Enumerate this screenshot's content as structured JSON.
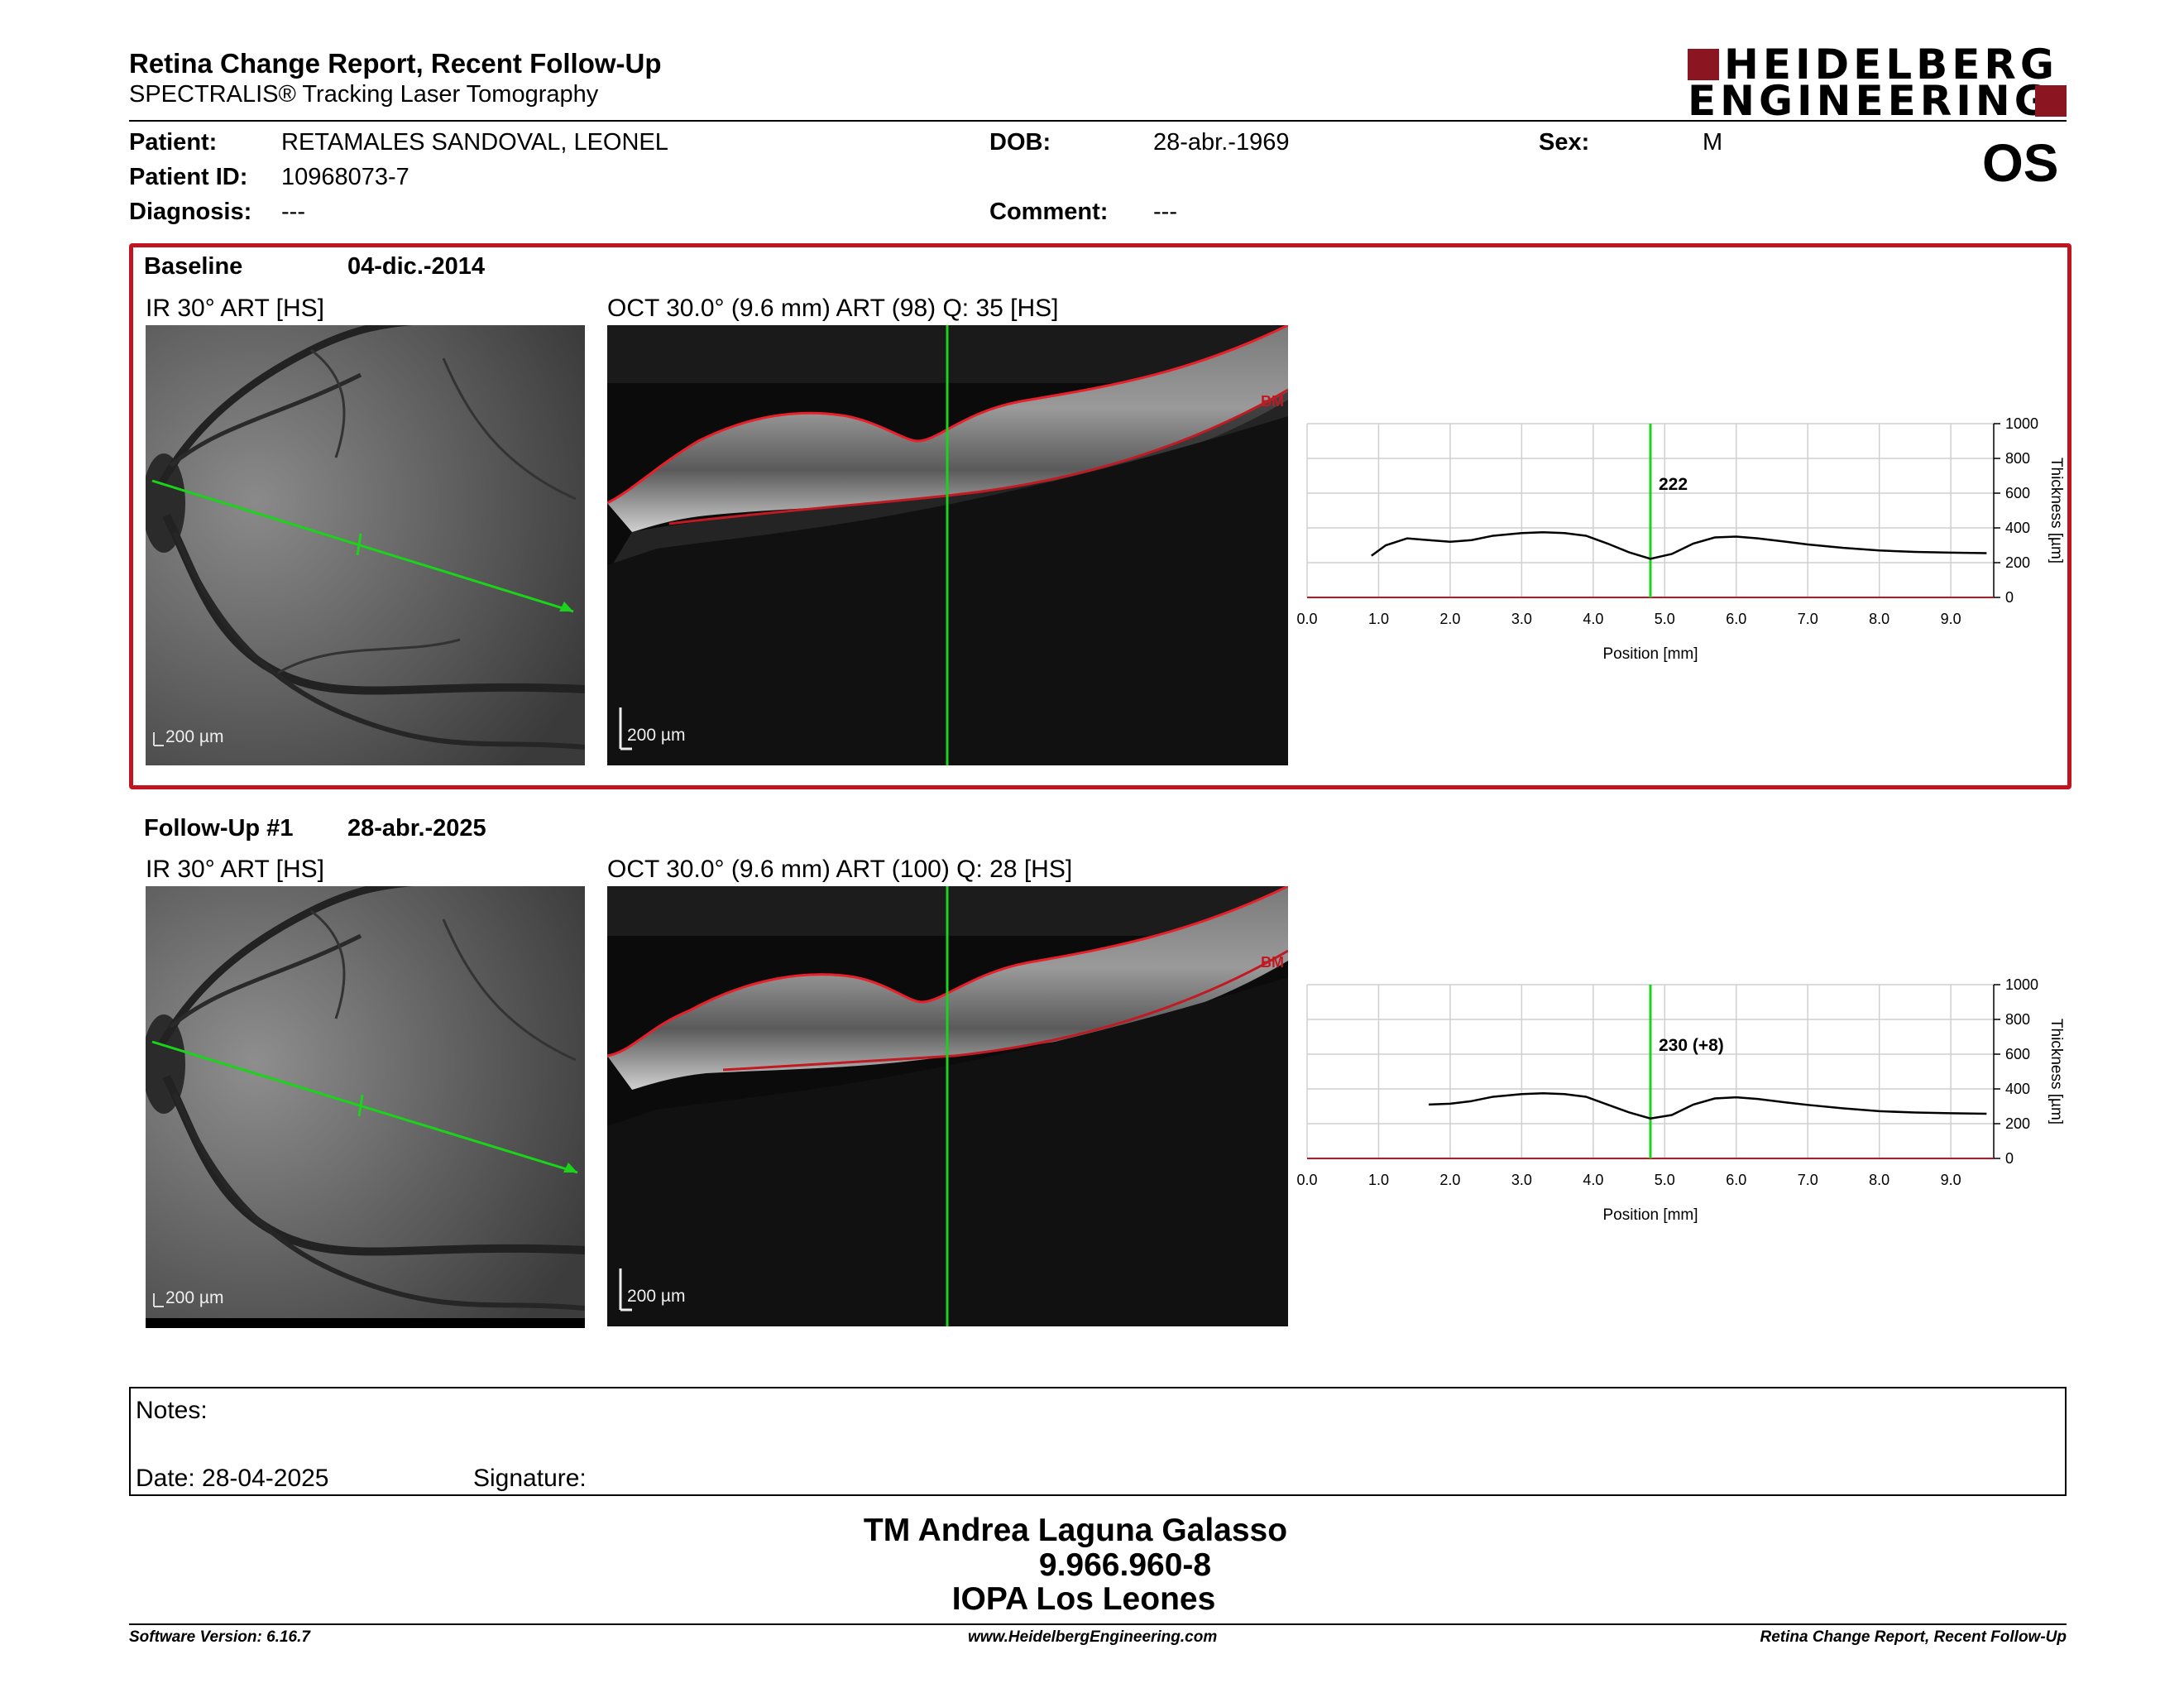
{
  "header": {
    "title": "Retina Change Report, Recent Follow-Up",
    "subtitle": "SPECTRALIS® Tracking Laser Tomography",
    "logo_line1": "HEIDELBERG",
    "logo_line2": "ENGINEERING",
    "brand_color": "#8b1521"
  },
  "patient": {
    "patient_label": "Patient:",
    "patient_value": "RETAMALES SANDOVAL, LEONEL",
    "id_label": "Patient ID:",
    "id_value": "10968073-7",
    "diagnosis_label": "Diagnosis:",
    "diagnosis_value": "---",
    "dob_label": "DOB:",
    "dob_value": "28-abr.-1969",
    "comment_label": "Comment:",
    "comment_value": "---",
    "sex_label": "Sex:",
    "sex_value": "M",
    "eye": "OS"
  },
  "baseline": {
    "label": "Baseline",
    "date": "04-dic.-2014",
    "ir_caption": "IR 30° ART [HS]",
    "oct_caption": "OCT 30.0° (9.6 mm) ART (98) Q: 35 [HS]",
    "ir_scale": "200 µm",
    "oct_scale": "200 µm",
    "bm_label": "BM",
    "highlight_color": "#c0141e"
  },
  "followup": {
    "label": "Follow-Up #1",
    "date": "28-abr.-2025",
    "ir_caption": "IR 30° ART [HS]",
    "oct_caption": "OCT 30.0° (9.6 mm) ART (100) Q: 28 [HS]",
    "ir_scale": "200 µm",
    "oct_scale": "200 µm",
    "bm_label": "BM"
  },
  "chart_data": [
    {
      "type": "line",
      "xlabel": "Position [mm]",
      "ylabel": "Thickness [µm]",
      "xlim": [
        0,
        9.6
      ],
      "ylim": [
        0,
        1000
      ],
      "xticks": [
        "0.0",
        "1.0",
        "2.0",
        "3.0",
        "4.0",
        "5.0",
        "6.0",
        "7.0",
        "8.0",
        "9.0"
      ],
      "yticks": [
        "0",
        "200",
        "400",
        "600",
        "800",
        "1000"
      ],
      "grid": true,
      "marker_x": 4.8,
      "marker_label": "222",
      "series": [
        {
          "x": [
            0.9,
            1.1,
            1.4,
            1.7,
            2.0,
            2.3,
            2.6,
            3.0,
            3.3,
            3.6,
            3.9,
            4.2,
            4.5,
            4.8,
            5.1,
            5.4,
            5.7,
            6.0,
            6.3,
            6.7,
            7.0,
            7.5,
            8.0,
            8.5,
            9.0,
            9.5
          ],
          "values": [
            240,
            300,
            340,
            330,
            320,
            330,
            355,
            370,
            375,
            370,
            355,
            310,
            260,
            222,
            250,
            310,
            345,
            350,
            340,
            320,
            305,
            285,
            270,
            262,
            258,
            255
          ]
        }
      ]
    },
    {
      "type": "line",
      "xlabel": "Position [mm]",
      "ylabel": "Thickness [µm]",
      "xlim": [
        0,
        9.6
      ],
      "ylim": [
        0,
        1000
      ],
      "xticks": [
        "0.0",
        "1.0",
        "2.0",
        "3.0",
        "4.0",
        "5.0",
        "6.0",
        "7.0",
        "8.0",
        "9.0"
      ],
      "yticks": [
        "0",
        "200",
        "400",
        "600",
        "800",
        "1000"
      ],
      "grid": true,
      "marker_x": 4.8,
      "marker_label": "230 (+8)",
      "series": [
        {
          "x": [
            1.7,
            2.0,
            2.3,
            2.6,
            3.0,
            3.3,
            3.6,
            3.9,
            4.2,
            4.5,
            4.8,
            5.1,
            5.4,
            5.7,
            6.0,
            6.3,
            6.7,
            7.0,
            7.5,
            8.0,
            8.5,
            9.0,
            9.5
          ],
          "values": [
            310,
            315,
            330,
            355,
            370,
            375,
            370,
            355,
            310,
            265,
            230,
            250,
            310,
            345,
            352,
            342,
            322,
            308,
            288,
            272,
            264,
            260,
            257
          ]
        }
      ]
    }
  ],
  "notes": {
    "notes_label": "Notes:",
    "date_label": "Date: 28-04-2025",
    "signature_label": "Signature:"
  },
  "signature_block": {
    "name": "TM Andrea Laguna Galasso",
    "id": "9.966.960-8",
    "clinic": "IOPA Los Leones"
  },
  "footer": {
    "software": "Software Version: 6.16.7",
    "url": "www.HeidelbergEngineering.com",
    "report_name": "Retina Change Report, Recent Follow-Up"
  }
}
